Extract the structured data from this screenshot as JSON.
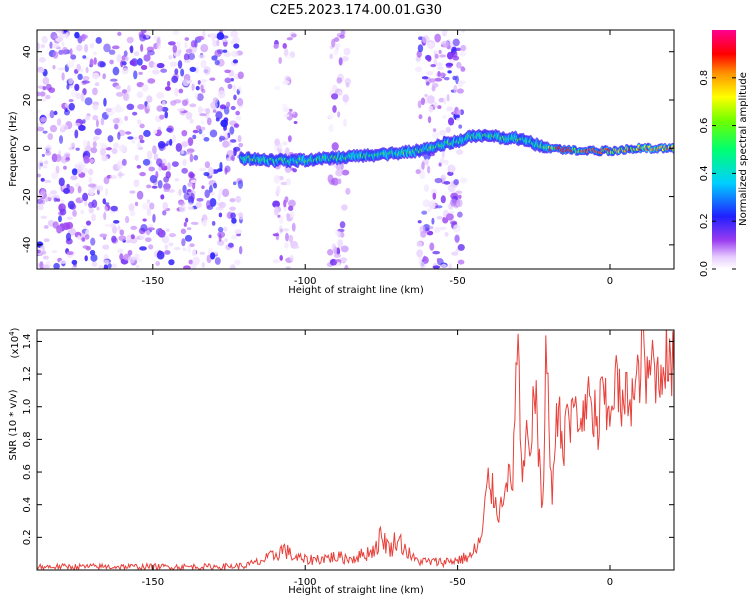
{
  "title": "C2E5.2023.174.00.01.G30",
  "chart_data": [
    {
      "type": "heatmap",
      "xlabel": "Height of straight line (km)",
      "ylabel": "Frequency (Hz)",
      "xlim": [
        -188,
        21
      ],
      "ylim": [
        -50,
        49
      ],
      "xticks": [
        -150,
        -100,
        -50,
        0
      ],
      "yticks": [
        -40,
        -20,
        0,
        20,
        40
      ],
      "colorbar": {
        "label": "Normalized spectral amplitude",
        "range": [
          0,
          1
        ],
        "ticks": [
          0.0,
          0.2,
          0.4,
          0.6,
          0.8
        ],
        "tick_labels": [
          "0.0",
          "0.2",
          "0.4",
          "0.6",
          "0.8"
        ],
        "colormap": "rainbow (white-violet-blue-cyan-green-yellow-orange-red-magenta)"
      },
      "noise_regions": [
        [
          -188,
          -121
        ],
        [
          -110,
          -103
        ],
        [
          -92,
          -86
        ],
        [
          -63,
          -48
        ]
      ],
      "signal_trace": {
        "x": [
          -121,
          -110,
          -100,
          -90,
          -80,
          -70,
          -63,
          -50,
          -45,
          -40,
          -30,
          -20,
          -10,
          0,
          10,
          21
        ],
        "y": [
          -4,
          -5,
          -5,
          -4,
          -3,
          -2,
          -1,
          3,
          5,
          5,
          4,
          0,
          -1,
          -1,
          0,
          0
        ],
        "strongest_from_x": -20
      }
    },
    {
      "type": "line",
      "xlabel": "Height of straight line (km)",
      "ylabel": "SNR (10 * v/v)",
      "scale_label_base": "(x10",
      "scale_label_exp": "4",
      "scale_label_end": ")",
      "xlim": [
        -188,
        21
      ],
      "ylim": [
        0,
        1.47
      ],
      "xticks": [
        -150,
        -100,
        -50,
        0
      ],
      "yticks": [
        0.2,
        0.4,
        0.6,
        0.8,
        1.0,
        1.2,
        1.4
      ],
      "color": "#e8403a",
      "series": [
        {
          "x": [
            -188,
            -160,
            -130,
            -120,
            -115,
            -110,
            -107,
            -104,
            -100,
            -95,
            -90,
            -85,
            -80,
            -77,
            -75,
            -72,
            -70,
            -68,
            -66,
            -64,
            -60,
            -55,
            -50,
            -45,
            -42,
            -40,
            -38,
            -36,
            -34,
            -32,
            -31,
            -30,
            -29,
            -28,
            -27,
            -26,
            -25,
            -24,
            -23,
            -22,
            -21,
            -20,
            -19,
            -18,
            -17,
            -16,
            -15,
            -14,
            -13,
            -12,
            -11,
            -10,
            -9,
            -8,
            -7,
            -6,
            -5,
            -4,
            -3,
            -2,
            -1,
            0,
            2,
            4,
            6,
            8,
            10,
            11,
            12,
            14,
            16,
            18,
            20,
            21
          ],
          "y": [
            0.02,
            0.02,
            0.02,
            0.025,
            0.05,
            0.09,
            0.13,
            0.08,
            0.06,
            0.07,
            0.08,
            0.07,
            0.1,
            0.13,
            0.21,
            0.12,
            0.2,
            0.15,
            0.1,
            0.06,
            0.05,
            0.05,
            0.06,
            0.09,
            0.2,
            0.55,
            0.45,
            0.35,
            0.62,
            0.45,
            1.2,
            1.33,
            0.5,
            0.65,
            0.85,
            0.55,
            1.3,
            0.95,
            0.55,
            0.35,
            1.46,
            0.8,
            0.5,
            0.75,
            1.03,
            0.9,
            0.7,
            1.05,
            0.85,
            1.02,
            0.95,
            0.85,
            1.0,
            0.9,
            1.1,
            0.88,
            0.98,
            0.8,
            1.05,
            1.1,
            0.9,
            1.0,
            1.18,
            0.95,
            1.1,
            1.05,
            1.25,
            1.47,
            1.1,
            1.3,
            1.15,
            1.35,
            1.2,
            1.28
          ]
        }
      ]
    }
  ]
}
